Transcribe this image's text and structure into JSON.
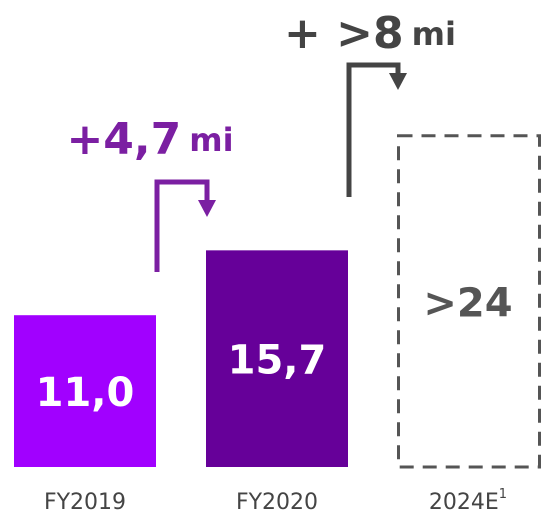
{
  "chart_data": {
    "type": "bar",
    "categories": [
      "FY2019",
      "FY2020",
      "2024E"
    ],
    "category_superscripts": [
      null,
      null,
      "1"
    ],
    "values": [
      11.0,
      15.7,
      24
    ],
    "value_labels": [
      "11,0",
      "15,7",
      ">24"
    ],
    "colors": [
      "#a100ff",
      "#660099",
      "#555555"
    ],
    "dashed": [
      false,
      false,
      true
    ],
    "annotations": [
      {
        "text": "+4,7",
        "unit": "mi",
        "color": "#7b1fa2"
      },
      {
        "text": "+ >8",
        "unit": "mi",
        "color": "#444444"
      }
    ]
  }
}
